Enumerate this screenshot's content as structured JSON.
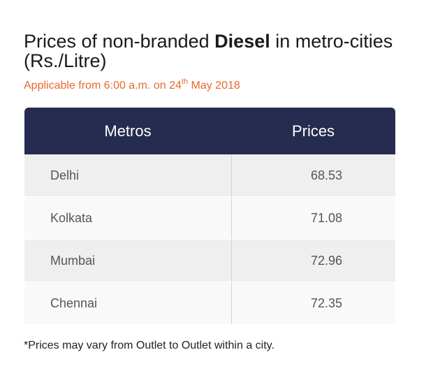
{
  "title": {
    "part1": "Prices of non-branded ",
    "bold": "Diesel",
    "part2": " in metro-cities (Rs./Litre)"
  },
  "subtitle": {
    "prefix": "Applicable from 6:00 a.m. on 24",
    "sup": "th",
    "suffix": " May 2018"
  },
  "table": {
    "headers": [
      "Metros",
      "Prices"
    ],
    "rows": [
      {
        "metro": "Delhi",
        "price": "68.53"
      },
      {
        "metro": "Kolkata",
        "price": "71.08"
      },
      {
        "metro": "Mumbai",
        "price": "72.96"
      },
      {
        "metro": "Chennai",
        "price": "72.35"
      }
    ]
  },
  "footnote": "*Prices may vary from Outlet to Outlet within a city.",
  "colors": {
    "header_bg": "#262c50",
    "accent": "#e8692e"
  }
}
